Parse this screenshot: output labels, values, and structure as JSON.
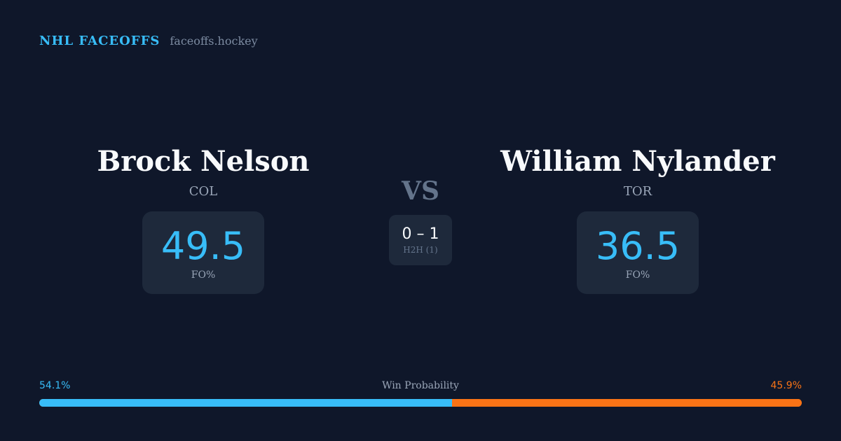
{
  "brand": {
    "name": "NHL FACEOFFS",
    "url": "faceoffs.hockey"
  },
  "players": [
    {
      "name": "Brock Nelson",
      "team": "COL",
      "stat_value": "49.5",
      "stat_label": "FO%"
    },
    {
      "name": "William Nylander",
      "team": "TOR",
      "stat_value": "36.5",
      "stat_label": "FO%"
    }
  ],
  "vs_label": "VS",
  "h2h": {
    "score": "0 – 1",
    "label": "H2H (1)"
  },
  "win_probability": {
    "title": "Win Probability",
    "left_label": "54.1%",
    "right_label": "45.9%",
    "left_percent": 54.1,
    "right_percent": 45.9,
    "colors": {
      "left": "#38bdf8",
      "right": "#f97316"
    }
  }
}
